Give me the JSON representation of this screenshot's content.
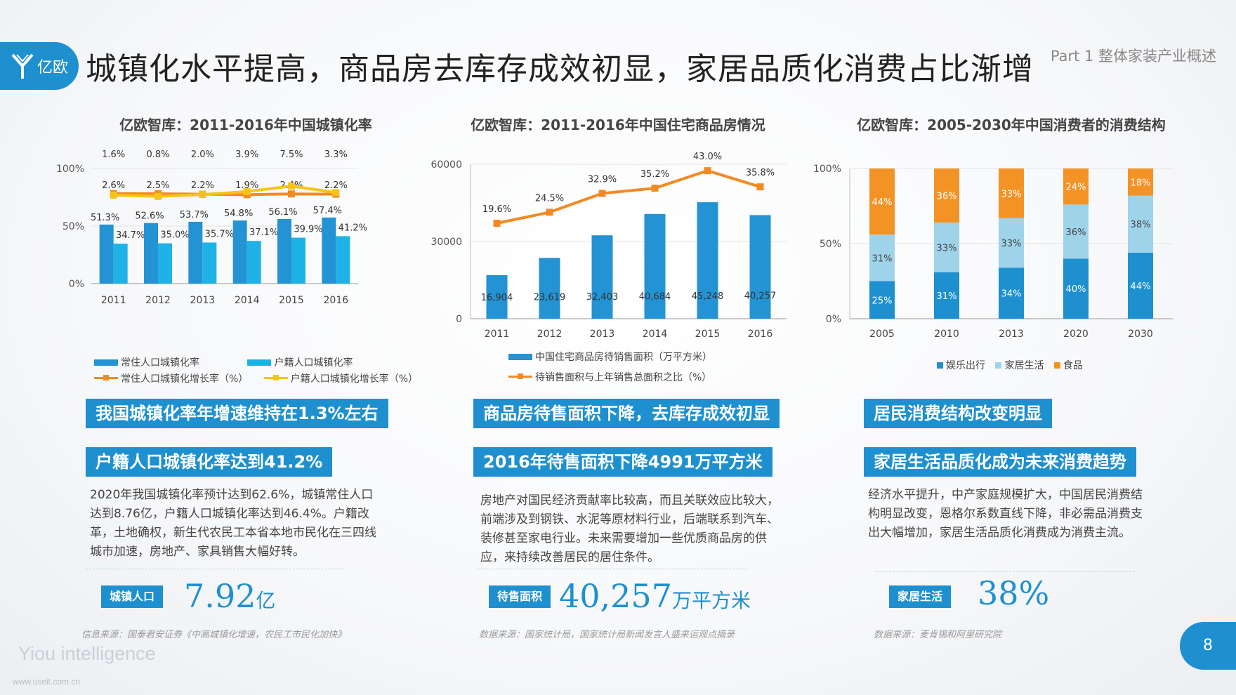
{
  "header": {
    "logo_text": "亿欧",
    "title": "城镇化水平提高，商品房去库存成效初显，家居品质化消费占比渐增",
    "part_label": "Part 1 整体家装产业概述"
  },
  "colors": {
    "accent": "#1e90d0",
    "bar_dark": "#2393d3",
    "bar_light": "#1fb2e6",
    "line_orange": "#f28a23",
    "line_yellow": "#f6c419",
    "seg_blue": "#1e90d0",
    "seg_lightblue": "#9fd3ea",
    "seg_orange": "#f49325"
  },
  "chart_data": [
    {
      "type": "bar",
      "title": "亿欧智库：2011-2016年中国城镇化率",
      "categories": [
        "2011",
        "2012",
        "2013",
        "2014",
        "2015",
        "2016"
      ],
      "y_ticks": [
        "0%",
        "50%",
        "100%"
      ],
      "ylim": [
        0,
        100
      ],
      "series": [
        {
          "name": "常住人口城镇化率",
          "kind": "bar",
          "values": [
            51.3,
            52.6,
            53.7,
            54.8,
            56.1,
            57.4
          ],
          "labels": [
            "51.3%",
            "52.6%",
            "53.7%",
            "54.8%",
            "56.1%",
            "57.4%"
          ]
        },
        {
          "name": "户籍人口城镇化率",
          "kind": "bar",
          "values": [
            34.7,
            35.0,
            35.7,
            37.1,
            39.9,
            41.2
          ],
          "labels": [
            "34.7%",
            "35.0%",
            "35.7%",
            "37.1%",
            "39.9%",
            "41.2%"
          ]
        },
        {
          "name": "常住人口城镇化增长率（%）",
          "kind": "line",
          "values": [
            2.6,
            2.5,
            2.2,
            1.9,
            2.4,
            2.2
          ],
          "labels": [
            "2.6%",
            "2.5%",
            "2.2%",
            "1.9%",
            "2.4%",
            "2.2%"
          ]
        },
        {
          "name": "户籍人口城镇化增长率（%）",
          "kind": "line",
          "values": [
            1.6,
            0.8,
            2.0,
            3.9,
            7.5,
            3.3
          ],
          "labels": [
            "1.6%",
            "0.8%",
            "2.0%",
            "3.9%",
            "7.5%",
            "3.3%"
          ]
        }
      ]
    },
    {
      "type": "bar",
      "title": "亿欧智库：2011-2016年中国住宅商品房情况",
      "categories": [
        "2011",
        "2012",
        "2013",
        "2014",
        "2015",
        "2016"
      ],
      "y_ticks": [
        "0",
        "30000",
        "60000"
      ],
      "ylim": [
        0,
        60000
      ],
      "series": [
        {
          "name": "中国住宅商品房待销售面积（万平方米）",
          "kind": "bar",
          "values": [
            16904,
            23619,
            32403,
            40684,
            45248,
            40257
          ],
          "labels": [
            "16,904",
            "23,619",
            "32,403",
            "40,684",
            "45,248",
            "40,257"
          ]
        },
        {
          "name": "待销售面积与上年销售总面积之比（%）",
          "kind": "line",
          "values": [
            19.6,
            24.5,
            32.9,
            35.2,
            43.0,
            35.8
          ],
          "labels": [
            "19.6%",
            "24.5%",
            "32.9%",
            "35.2%",
            "43.0%",
            "35.8%"
          ]
        }
      ]
    },
    {
      "type": "bar",
      "stacked": true,
      "title": "亿欧智库：2005-2030年中国消费者的消费结构",
      "categories": [
        "2005",
        "2010",
        "2013",
        "2020",
        "2030"
      ],
      "y_ticks": [
        "0%",
        "50%",
        "100%"
      ],
      "ylim": [
        0,
        100
      ],
      "series": [
        {
          "name": "娱乐出行",
          "values": [
            25,
            31,
            34,
            40,
            44
          ],
          "labels": [
            "25%",
            "31%",
            "34%",
            "40%",
            "44%"
          ]
        },
        {
          "name": "家居生活",
          "values": [
            31,
            33,
            33,
            36,
            38
          ],
          "labels": [
            "31%",
            "33%",
            "33%",
            "36%",
            "38%"
          ]
        },
        {
          "name": "食品",
          "values": [
            44,
            36,
            33,
            24,
            18
          ],
          "labels": [
            "44%",
            "36%",
            "33%",
            "24%",
            "18%"
          ]
        }
      ]
    }
  ],
  "columns": [
    {
      "banner1": "我国城镇化率年增速维持在1.3%左右",
      "banner2": "户籍人口城镇化率达到41.2%",
      "paragraph": "2020年我国城镇化率预计达到62.6%，城镇常住人口达到8.76亿，户籍人口城镇化率达到46.4%。户籍改革，土地确权，新生代农民工本省本地市民化在三四线城市加速，房地产、家具销售大幅好转。",
      "kpi_tag": "城镇人口",
      "kpi_number": "7.92",
      "kpi_unit": "亿",
      "source": "信息来源：国泰君安证券《中高城镇化增速，农民工市民化加快》"
    },
    {
      "banner1": "商品房待售面积下降，去库存成效初显",
      "banner2": "2016年待售面积下降4991万平方米",
      "paragraph": "房地产对国民经济贡献率比较高，而且关联效应比较大，前端涉及到钢铁、水泥等原材料行业，后端联系到汽车、装修甚至家电行业。未来需要增加一些优质商品房的供应，来持续改善居民的居住条件。",
      "kpi_tag": "待售面积",
      "kpi_number": "40,257",
      "kpi_unit": "万平方米",
      "source": "数据来源：国家统计局，国家统计局新闻发言人盛来运观点摘录"
    },
    {
      "banner1": "居民消费结构改变明显",
      "banner2": "家居生活品质化成为未来消费趋势",
      "paragraph": "经济水平提升，中产家庭规模扩大，中国居民消费结构明显改变，恩格尔系数直线下降，非必需品消费支出大幅增加，家居生活品质化消费成为消费主流。",
      "kpi_tag": "家居生活",
      "kpi_number": "38%",
      "kpi_unit": "",
      "source": "数据来源：麦肯锡和阿里研究院"
    }
  ],
  "footer": {
    "brand": "Yiou intelligence",
    "url": "www.useit.com.cn",
    "page_number": "8"
  }
}
